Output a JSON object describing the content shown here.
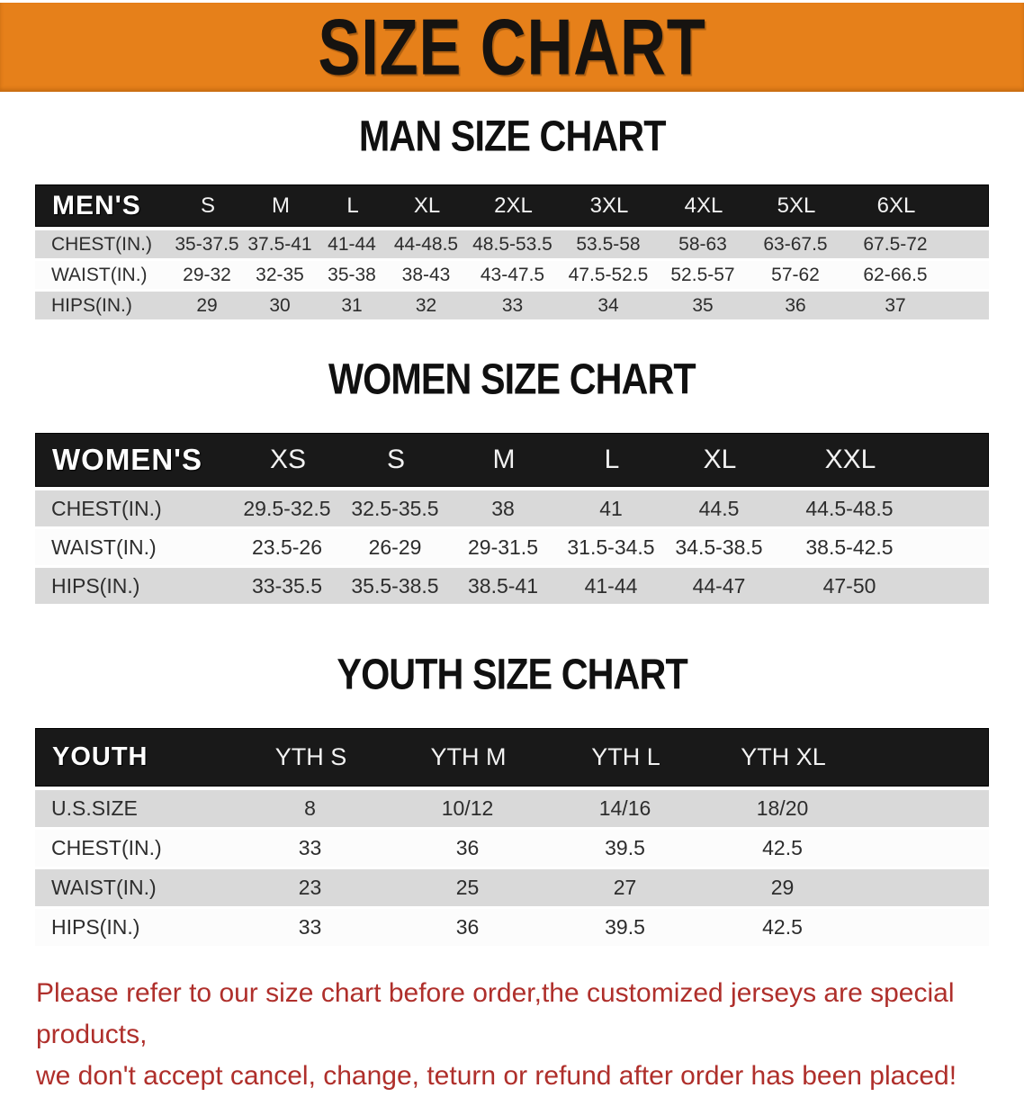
{
  "banner": {
    "title": "SIZE CHART",
    "bg_color": "#E6801A",
    "text_color": "#161310"
  },
  "sections": [
    {
      "title": "MAN SIZE CHART",
      "table": {
        "header_label": "MEN'S",
        "columns": [
          "S",
          "M",
          "L",
          "XL",
          "2XL",
          "3XL",
          "4XL",
          "5XL",
          "6XL"
        ],
        "rows": [
          {
            "label": "CHEST(IN.)",
            "values": [
              "35-37.5",
              "37.5-41",
              "41-44",
              "44-48.5",
              "48.5-53.5",
              "53.5-58",
              "58-63",
              "63-67.5",
              "67.5-72"
            ]
          },
          {
            "label": "WAIST(IN.)",
            "values": [
              "29-32",
              "32-35",
              "35-38",
              "38-43",
              "43-47.5",
              "47.5-52.5",
              "52.5-57",
              "57-62",
              "62-66.5"
            ]
          },
          {
            "label": "HIPS(IN.)",
            "values": [
              "29",
              "30",
              "31",
              "32",
              "33",
              "34",
              "35",
              "36",
              "37"
            ]
          }
        ]
      }
    },
    {
      "title": "WOMEN SIZE CHART",
      "table": {
        "header_label": "WOMEN'S",
        "columns": [
          "XS",
          "S",
          "M",
          "L",
          "XL",
          "XXL"
        ],
        "rows": [
          {
            "label": "CHEST(IN.)",
            "values": [
              "29.5-32.5",
              "32.5-35.5",
              "38",
              "41",
              "44.5",
              "44.5-48.5"
            ]
          },
          {
            "label": "WAIST(IN.)",
            "values": [
              "23.5-26",
              "26-29",
              "29-31.5",
              "31.5-34.5",
              "34.5-38.5",
              "38.5-42.5"
            ]
          },
          {
            "label": "HIPS(IN.)",
            "values": [
              "33-35.5",
              "35.5-38.5",
              "38.5-41",
              "41-44",
              "44-47",
              "47-50"
            ]
          }
        ]
      }
    },
    {
      "title": "YOUTH SIZE CHART",
      "table": {
        "header_label": "YOUTH",
        "columns": [
          "YTH S",
          "YTH M",
          "YTH L",
          "YTH XL"
        ],
        "rows": [
          {
            "label": "U.S.SIZE",
            "values": [
              "8",
              "10/12",
              "14/16",
              "18/20"
            ]
          },
          {
            "label": "CHEST(IN.)",
            "values": [
              "33",
              "36",
              "39.5",
              "42.5"
            ]
          },
          {
            "label": "WAIST(IN.)",
            "values": [
              "23",
              "25",
              "27",
              "29"
            ]
          },
          {
            "label": "HIPS(IN.)",
            "values": [
              "33",
              "36",
              "39.5",
              "42.5"
            ]
          }
        ]
      }
    }
  ],
  "footer": {
    "line1": "Please refer to our size chart before order,the customized jerseys are special products,",
    "line2": "we don't accept cancel, change, teturn or refund after order has been placed!",
    "color": "#AF2F2B"
  }
}
